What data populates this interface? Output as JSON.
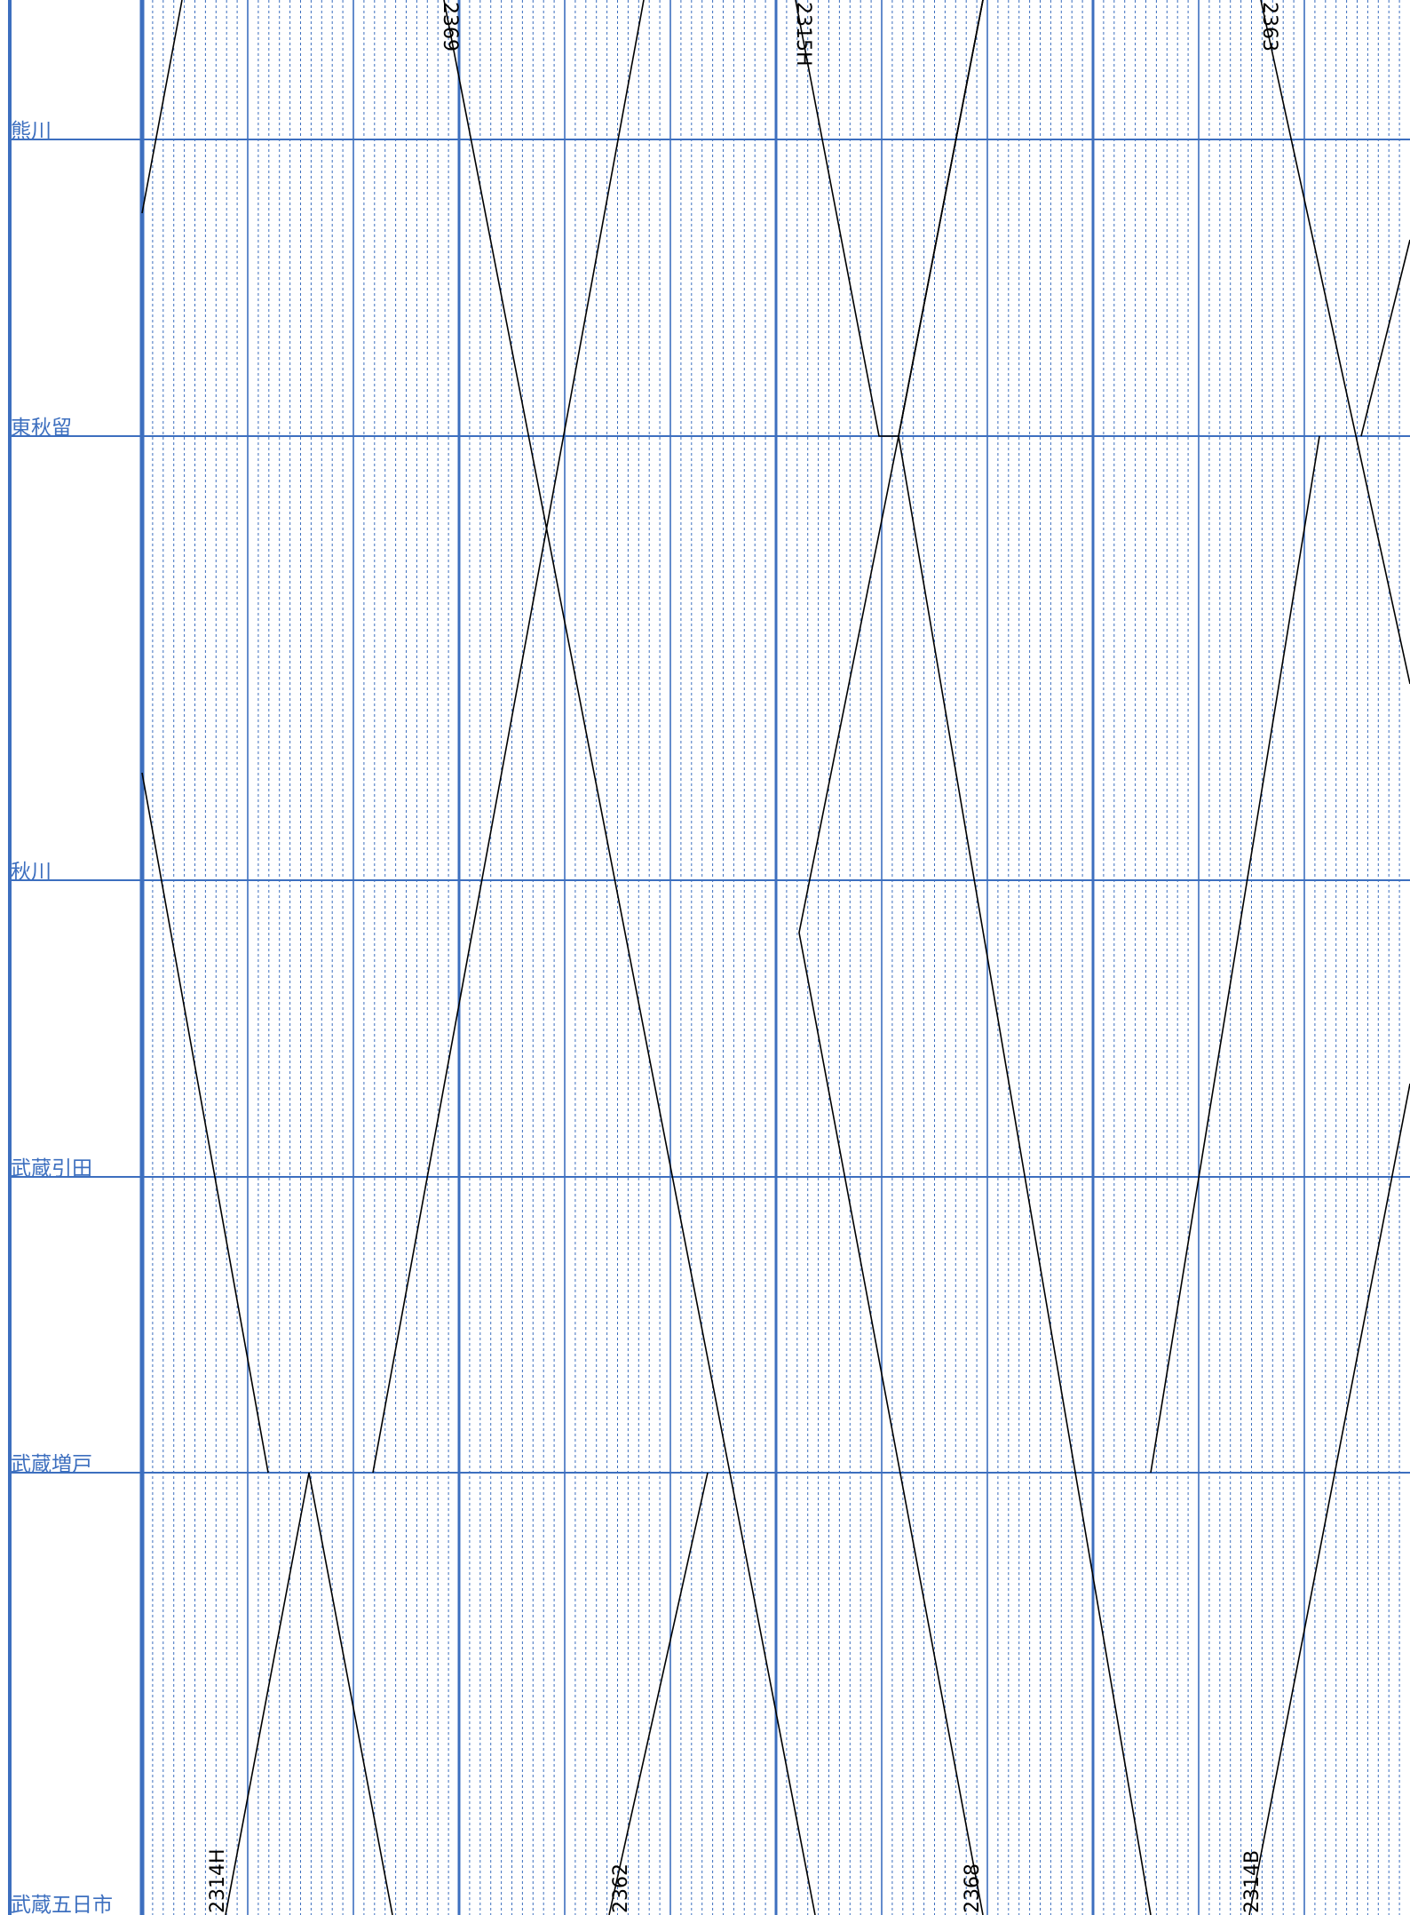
{
  "diagram": {
    "stations": [
      "熊川",
      "東秋留",
      "秋川",
      "武蔵引田",
      "武蔵増戸",
      "武蔵五日市"
    ],
    "trains": [
      "2369",
      "2315H",
      "2363",
      "2314H",
      "2362",
      "2368",
      "2314B"
    ]
  },
  "colors": {
    "grid": "#3d6fbf",
    "station_line": "#3d6fbf",
    "train_line": "#000000",
    "label": "#3d6fbf"
  }
}
